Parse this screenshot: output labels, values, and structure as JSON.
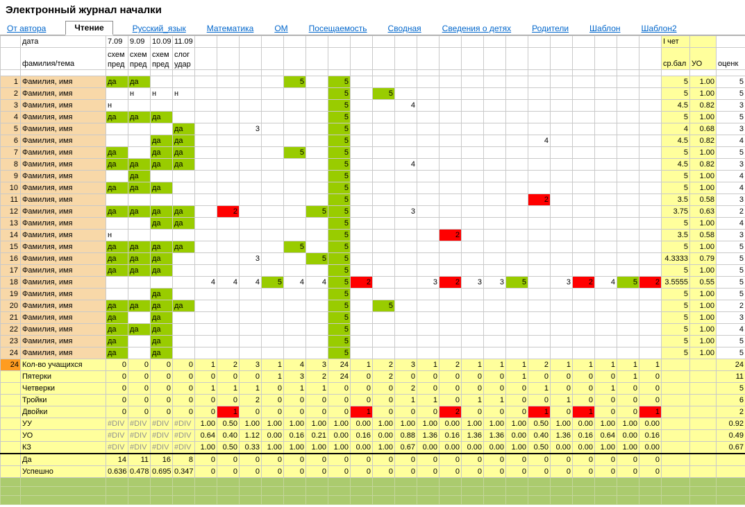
{
  "title": "Электронный журнал началки",
  "tabs": [
    {
      "label": "От автора",
      "active": false
    },
    {
      "label": "Чтение",
      "active": true
    },
    {
      "label": "Русский_язык",
      "active": false
    },
    {
      "label": "Математика",
      "active": false
    },
    {
      "label": "ОМ",
      "active": false
    },
    {
      "label": "Посещаемость",
      "active": false
    },
    {
      "label": "Сводная",
      "active": false
    },
    {
      "label": "Сведения о детях",
      "active": false
    },
    {
      "label": "Родители",
      "active": false
    },
    {
      "label": "Шаблон",
      "active": false
    },
    {
      "label": "Шаблон2",
      "active": false
    }
  ],
  "grid": {
    "header": {
      "date_label": "дата",
      "name_label": "фамилия/тема",
      "dates": [
        "7.09",
        "9.09",
        "10.09",
        "11.09"
      ],
      "themes": [
        "схем\nпред",
        "схем\nпред",
        "схем\nпред",
        "слог\nудар"
      ],
      "quarter_label": "I чет",
      "avg_label": "ср.бал",
      "uo_label": "УО",
      "mark_label": "оценк"
    },
    "data_col_count": 25,
    "colors": {
      "green_cell": "#99cc00",
      "red_cell": "#ff0000",
      "yellow_cell": "#ffff9c",
      "peach_cell": "#f8d8a8",
      "orange_cell": "#ff9c20",
      "filler_green": "#abcb6e",
      "link_blue": "#0066cc"
    },
    "students": [
      {
        "n": "1",
        "name": "Фамилия, имя",
        "cells": {
          "1": "да",
          "2": "да",
          "9": "5",
          "11": "5"
        },
        "avg": "5",
        "uo": "1.00",
        "mark": "5"
      },
      {
        "n": "2",
        "name": "Фамилия, имя",
        "cells": {
          "2": "н",
          "3": "н",
          "4": "н",
          "11": "5",
          "13": "5"
        },
        "avg": "5",
        "uo": "1.00",
        "mark": "5"
      },
      {
        "n": "3",
        "name": "Фамилия, имя",
        "cells": {
          "1": "н",
          "11": "5",
          "14": "4"
        },
        "avg": "4.5",
        "uo": "0.82",
        "mark": "3"
      },
      {
        "n": "4",
        "name": "Фамилия, имя",
        "cells": {
          "1": "да",
          "2": "да",
          "3": "да",
          "11": "5"
        },
        "avg": "5",
        "uo": "1.00",
        "mark": "5"
      },
      {
        "n": "5",
        "name": "Фамилия, имя",
        "cells": {
          "4": "да",
          "7": "3",
          "11": "5"
        },
        "avg": "4",
        "uo": "0.68",
        "mark": "3"
      },
      {
        "n": "6",
        "name": "Фамилия, имя",
        "cells": {
          "3": "да",
          "4": "да",
          "11": "5",
          "20": "4"
        },
        "avg": "4.5",
        "uo": "0.82",
        "mark": "4"
      },
      {
        "n": "7",
        "name": "Фамилия, имя",
        "cells": {
          "1": "да",
          "3": "да",
          "4": "да",
          "9": "5",
          "11": "5"
        },
        "avg": "5",
        "uo": "1.00",
        "mark": "5"
      },
      {
        "n": "8",
        "name": "Фамилия, имя",
        "cells": {
          "1": "да",
          "2": "да",
          "3": "да",
          "4": "да",
          "11": "5",
          "14": "4"
        },
        "avg": "4.5",
        "uo": "0.82",
        "mark": "3"
      },
      {
        "n": "9",
        "name": "Фамилия, имя",
        "cells": {
          "2": "да",
          "11": "5"
        },
        "avg": "5",
        "uo": "1.00",
        "mark": "4"
      },
      {
        "n": "10",
        "name": "Фамилия, имя",
        "cells": {
          "1": "да",
          "2": "да",
          "3": "да",
          "11": "5"
        },
        "avg": "5",
        "uo": "1.00",
        "mark": "4"
      },
      {
        "n": "11",
        "name": "Фамилия, имя",
        "cells": {
          "11": "5",
          "20": "2"
        },
        "avg": "3.5",
        "uo": "0.58",
        "mark": "3"
      },
      {
        "n": "12",
        "name": "Фамилия, имя",
        "cells": {
          "1": "да",
          "2": "да",
          "3": "да",
          "4": "да",
          "6": "2",
          "10": "5",
          "11": "5",
          "14": "3"
        },
        "avg": "3.75",
        "uo": "0.63",
        "mark": "2"
      },
      {
        "n": "13",
        "name": "Фамилия, имя",
        "cells": {
          "3": "да",
          "4": "да",
          "11": "5"
        },
        "avg": "5",
        "uo": "1.00",
        "mark": "4"
      },
      {
        "n": "14",
        "name": "Фамилия, имя",
        "cells": {
          "1": "н",
          "11": "5",
          "16": "2"
        },
        "avg": "3.5",
        "uo": "0.58",
        "mark": "3"
      },
      {
        "n": "15",
        "name": "Фамилия, имя",
        "cells": {
          "1": "да",
          "2": "да",
          "3": "да",
          "4": "да",
          "9": "5",
          "11": "5"
        },
        "avg": "5",
        "uo": "1.00",
        "mark": "5"
      },
      {
        "n": "16",
        "name": "Фамилия, имя",
        "cells": {
          "1": "да",
          "2": "да",
          "3": "да",
          "7": "3",
          "10": "5",
          "11": "5"
        },
        "avg": "4.3333",
        "uo": "0.79",
        "mark": "5"
      },
      {
        "n": "17",
        "name": "Фамилия, имя",
        "cells": {
          "1": "да",
          "2": "да",
          "3": "да",
          "11": "5"
        },
        "avg": "5",
        "uo": "1.00",
        "mark": "5"
      },
      {
        "n": "18",
        "name": "Фамилия, имя",
        "cells": {
          "5": "4",
          "6": "4",
          "7": "4",
          "8": "5",
          "9": "4",
          "10": "4",
          "11": "5",
          "12": "2",
          "15": "3",
          "16": "2",
          "17": "3",
          "18": "3",
          "19": "5",
          "21": "3",
          "22": "2",
          "23": "4",
          "24": "5",
          "25": "2"
        },
        "avg": "3.5555",
        "uo": "0.55",
        "mark": "5"
      },
      {
        "n": "19",
        "name": "Фамилия, имя",
        "cells": {
          "3": "да",
          "11": "5"
        },
        "avg": "5",
        "uo": "1.00",
        "mark": "5"
      },
      {
        "n": "20",
        "name": "Фамилия, имя",
        "cells": {
          "1": "да",
          "2": "да",
          "3": "да",
          "4": "да",
          "11": "5",
          "13": "5"
        },
        "avg": "5",
        "uo": "1.00",
        "mark": "2"
      },
      {
        "n": "21",
        "name": "Фамилия, имя",
        "cells": {
          "1": "да",
          "3": "да",
          "11": "5"
        },
        "avg": "5",
        "uo": "1.00",
        "mark": "3"
      },
      {
        "n": "22",
        "name": "Фамилия, имя",
        "cells": {
          "1": "да",
          "2": "да",
          "3": "да",
          "11": "5"
        },
        "avg": "5",
        "uo": "1.00",
        "mark": "4"
      },
      {
        "n": "23",
        "name": "Фамилия, имя",
        "cells": {
          "1": "да",
          "3": "да",
          "11": "5"
        },
        "avg": "5",
        "uo": "1.00",
        "mark": "5"
      },
      {
        "n": "24",
        "name": "Фамилия, имя",
        "cells": {
          "1": "да",
          "3": "да",
          "11": "5"
        },
        "avg": "5",
        "uo": "1.00",
        "mark": "5"
      }
    ],
    "stats": [
      {
        "label": "Кол-во учащихся",
        "num": "24",
        "values": [
          "0",
          "0",
          "0",
          "0",
          "1",
          "2",
          "3",
          "1",
          "4",
          "3",
          "24",
          "1",
          "2",
          "3",
          "1",
          "2",
          "1",
          "1",
          "1",
          "2",
          "1",
          "1",
          "1",
          "1",
          "1"
        ],
        "mark": "24",
        "red_nonzero": false,
        "mark_red": false,
        "thick_top": false
      },
      {
        "label": "Пятерки",
        "num": "",
        "values": [
          "0",
          "0",
          "0",
          "0",
          "0",
          "0",
          "0",
          "1",
          "3",
          "2",
          "24",
          "0",
          "2",
          "0",
          "0",
          "0",
          "0",
          "0",
          "1",
          "0",
          "0",
          "0",
          "0",
          "1",
          "0"
        ],
        "mark": "11",
        "red_nonzero": false,
        "mark_red": false,
        "thick_top": false
      },
      {
        "label": "Четверки",
        "num": "",
        "values": [
          "0",
          "0",
          "0",
          "0",
          "1",
          "1",
          "1",
          "0",
          "1",
          "1",
          "0",
          "0",
          "0",
          "2",
          "0",
          "0",
          "0",
          "0",
          "0",
          "1",
          "0",
          "0",
          "1",
          "0",
          "0"
        ],
        "mark": "5",
        "red_nonzero": false,
        "mark_red": false,
        "thick_top": false
      },
      {
        "label": "Тройки",
        "num": "",
        "values": [
          "0",
          "0",
          "0",
          "0",
          "0",
          "0",
          "2",
          "0",
          "0",
          "0",
          "0",
          "0",
          "0",
          "1",
          "1",
          "0",
          "1",
          "1",
          "0",
          "0",
          "1",
          "0",
          "0",
          "0",
          "0"
        ],
        "mark": "6",
        "red_nonzero": false,
        "mark_red": false,
        "thick_top": false
      },
      {
        "label": "Двойки",
        "num": "",
        "values": [
          "0",
          "0",
          "0",
          "0",
          "0",
          "1",
          "0",
          "0",
          "0",
          "0",
          "0",
          "1",
          "0",
          "0",
          "0",
          "2",
          "0",
          "0",
          "0",
          "1",
          "0",
          "1",
          "0",
          "0",
          "1"
        ],
        "mark": "2",
        "red_nonzero": true,
        "mark_red": true,
        "thick_top": false
      },
      {
        "label": "УУ",
        "num": "",
        "values": [
          "#DIV",
          "#DIV",
          "#DIV",
          "#DIV",
          "1.00",
          "0.50",
          "1.00",
          "1.00",
          "1.00",
          "1.00",
          "1.00",
          "0.00",
          "1.00",
          "1.00",
          "1.00",
          "0.00",
          "1.00",
          "1.00",
          "1.00",
          "0.50",
          "1.00",
          "0.00",
          "1.00",
          "1.00",
          "0.00"
        ],
        "mark": "0.92",
        "red_nonzero": false,
        "mark_red": false,
        "thick_top": false
      },
      {
        "label": "УО",
        "num": "",
        "values": [
          "#DIV",
          "#DIV",
          "#DIV",
          "#DIV",
          "0.64",
          "0.40",
          "1.12",
          "0.00",
          "0.16",
          "0.21",
          "0.00",
          "0.16",
          "0.00",
          "0.88",
          "1.36",
          "0.16",
          "1.36",
          "1.36",
          "0.00",
          "0.40",
          "1.36",
          "0.16",
          "0.64",
          "0.00",
          "0.16"
        ],
        "mark": "0.49",
        "red_nonzero": false,
        "mark_red": false,
        "thick_top": false
      },
      {
        "label": "КЗ",
        "num": "",
        "values": [
          "#DIV",
          "#DIV",
          "#DIV",
          "#DIV",
          "1.00",
          "0.50",
          "0.33",
          "1.00",
          "1.00",
          "1.00",
          "1.00",
          "0.00",
          "1.00",
          "0.67",
          "0.00",
          "0.00",
          "0.00",
          "0.00",
          "1.00",
          "0.50",
          "0.00",
          "0.00",
          "1.00",
          "1.00",
          "0.00"
        ],
        "mark": "0.67",
        "red_nonzero": false,
        "mark_red": false,
        "thick_top": false
      },
      {
        "label": "Да",
        "num": "",
        "values": [
          "14",
          "11",
          "16",
          "8",
          "0",
          "0",
          "0",
          "0",
          "0",
          "0",
          "0",
          "0",
          "0",
          "0",
          "0",
          "0",
          "0",
          "0",
          "0",
          "0",
          "0",
          "0",
          "0",
          "0",
          "0"
        ],
        "mark": "",
        "red_nonzero": false,
        "mark_red": false,
        "thick_top": true
      },
      {
        "label": "Успешно",
        "num": "",
        "values": [
          "0.636",
          "0.478",
          "0.695",
          "0.347",
          "0",
          "0",
          "0",
          "0",
          "0",
          "0",
          "0",
          "0",
          "0",
          "0",
          "0",
          "0",
          "0",
          "0",
          "0",
          "0",
          "0",
          "0",
          "0",
          "0",
          "0"
        ],
        "mark": "",
        "red_nonzero": false,
        "mark_red": false,
        "thick_top": false
      }
    ]
  }
}
